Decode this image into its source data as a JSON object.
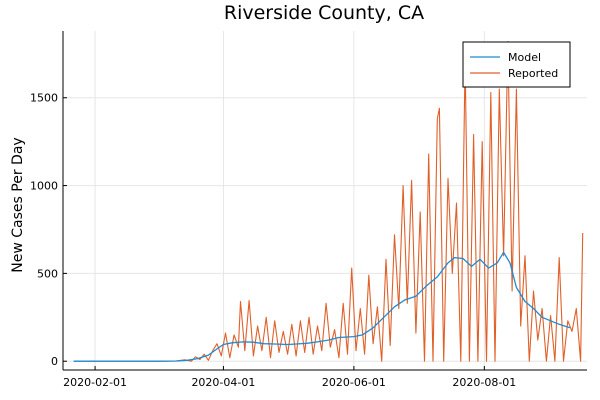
{
  "chart_data": {
    "type": "line",
    "title": "Riverside County, CA",
    "xlabel": "",
    "ylabel": "New Cases Per Day",
    "x_axis_type": "date",
    "xlim": [
      "2020-01-17",
      "2020-09-18"
    ],
    "ylim": [
      -50,
      1880
    ],
    "x_ticks": [
      "2020-02-01",
      "2020-04-01",
      "2020-06-01",
      "2020-08-01"
    ],
    "y_ticks": [
      0,
      500,
      1000,
      1500
    ],
    "grid": true,
    "legend_position": "top-right",
    "colors": {
      "Model": "#1f8bd1",
      "Reported": "#e0602a"
    },
    "series": [
      {
        "name": "Model",
        "points": [
          [
            "2020-01-22",
            0
          ],
          [
            "2020-02-15",
            0
          ],
          [
            "2020-03-01",
            0
          ],
          [
            "2020-03-10",
            1
          ],
          [
            "2020-03-15",
            5
          ],
          [
            "2020-03-20",
            15
          ],
          [
            "2020-03-25",
            35
          ],
          [
            "2020-03-29",
            70
          ],
          [
            "2020-04-01",
            95
          ],
          [
            "2020-04-05",
            105
          ],
          [
            "2020-04-10",
            110
          ],
          [
            "2020-04-15",
            108
          ],
          [
            "2020-04-20",
            100
          ],
          [
            "2020-04-25",
            98
          ],
          [
            "2020-05-01",
            95
          ],
          [
            "2020-05-05",
            98
          ],
          [
            "2020-05-10",
            102
          ],
          [
            "2020-05-15",
            110
          ],
          [
            "2020-05-20",
            120
          ],
          [
            "2020-05-25",
            135
          ],
          [
            "2020-06-01",
            140
          ],
          [
            "2020-06-05",
            150
          ],
          [
            "2020-06-10",
            190
          ],
          [
            "2020-06-15",
            250
          ],
          [
            "2020-06-20",
            310
          ],
          [
            "2020-06-25",
            350
          ],
          [
            "2020-06-30",
            370
          ],
          [
            "2020-07-05",
            430
          ],
          [
            "2020-07-10",
            480
          ],
          [
            "2020-07-15",
            560
          ],
          [
            "2020-07-18",
            590
          ],
          [
            "2020-07-22",
            585
          ],
          [
            "2020-07-26",
            540
          ],
          [
            "2020-07-30",
            580
          ],
          [
            "2020-08-03",
            530
          ],
          [
            "2020-08-07",
            560
          ],
          [
            "2020-08-10",
            620
          ],
          [
            "2020-08-13",
            560
          ],
          [
            "2020-08-16",
            420
          ],
          [
            "2020-08-20",
            340
          ],
          [
            "2020-08-24",
            300
          ],
          [
            "2020-08-28",
            250
          ],
          [
            "2020-09-01",
            230
          ],
          [
            "2020-09-05",
            210
          ],
          [
            "2020-09-10",
            190
          ]
        ]
      },
      {
        "name": "Reported",
        "points": [
          [
            "2020-01-22",
            0
          ],
          [
            "2020-02-20",
            0
          ],
          [
            "2020-03-05",
            0
          ],
          [
            "2020-03-10",
            2
          ],
          [
            "2020-03-14",
            8
          ],
          [
            "2020-03-17",
            0
          ],
          [
            "2020-03-19",
            25
          ],
          [
            "2020-03-21",
            10
          ],
          [
            "2020-03-23",
            40
          ],
          [
            "2020-03-25",
            5
          ],
          [
            "2020-03-27",
            60
          ],
          [
            "2020-03-29",
            100
          ],
          [
            "2020-03-31",
            30
          ],
          [
            "2020-04-02",
            160
          ],
          [
            "2020-04-04",
            20
          ],
          [
            "2020-04-06",
            150
          ],
          [
            "2020-04-08",
            80
          ],
          [
            "2020-04-09",
            340
          ],
          [
            "2020-04-11",
            60
          ],
          [
            "2020-04-13",
            345
          ],
          [
            "2020-04-15",
            30
          ],
          [
            "2020-04-17",
            200
          ],
          [
            "2020-04-19",
            60
          ],
          [
            "2020-04-21",
            250
          ],
          [
            "2020-04-23",
            20
          ],
          [
            "2020-04-25",
            230
          ],
          [
            "2020-04-27",
            50
          ],
          [
            "2020-04-29",
            170
          ],
          [
            "2020-05-01",
            40
          ],
          [
            "2020-05-03",
            210
          ],
          [
            "2020-05-05",
            30
          ],
          [
            "2020-05-07",
            230
          ],
          [
            "2020-05-09",
            50
          ],
          [
            "2020-05-11",
            250
          ],
          [
            "2020-05-13",
            40
          ],
          [
            "2020-05-15",
            200
          ],
          [
            "2020-05-17",
            60
          ],
          [
            "2020-05-19",
            330
          ],
          [
            "2020-05-21",
            80
          ],
          [
            "2020-05-23",
            180
          ],
          [
            "2020-05-25",
            20
          ],
          [
            "2020-05-27",
            330
          ],
          [
            "2020-05-29",
            40
          ],
          [
            "2020-05-31",
            530
          ],
          [
            "2020-06-02",
            60
          ],
          [
            "2020-06-04",
            300
          ],
          [
            "2020-06-06",
            40
          ],
          [
            "2020-06-08",
            490
          ],
          [
            "2020-06-10",
            100
          ],
          [
            "2020-06-12",
            310
          ],
          [
            "2020-06-14",
            0
          ],
          [
            "2020-06-16",
            580
          ],
          [
            "2020-06-18",
            90
          ],
          [
            "2020-06-20",
            720
          ],
          [
            "2020-06-22",
            300
          ],
          [
            "2020-06-24",
            1000
          ],
          [
            "2020-06-26",
            330
          ],
          [
            "2020-06-28",
            1030
          ],
          [
            "2020-06-30",
            160
          ],
          [
            "2020-07-02",
            850
          ],
          [
            "2020-07-04",
            0
          ],
          [
            "2020-07-06",
            1180
          ],
          [
            "2020-07-08",
            0
          ],
          [
            "2020-07-10",
            1380
          ],
          [
            "2020-07-11",
            1440
          ],
          [
            "2020-07-13",
            0
          ],
          [
            "2020-07-15",
            1040
          ],
          [
            "2020-07-17",
            500
          ],
          [
            "2020-07-19",
            900
          ],
          [
            "2020-07-21",
            0
          ],
          [
            "2020-07-23",
            1720
          ],
          [
            "2020-07-25",
            0
          ],
          [
            "2020-07-27",
            1290
          ],
          [
            "2020-07-29",
            0
          ],
          [
            "2020-07-31",
            1250
          ],
          [
            "2020-08-02",
            0
          ],
          [
            "2020-08-04",
            1530
          ],
          [
            "2020-08-06",
            0
          ],
          [
            "2020-08-08",
            1550
          ],
          [
            "2020-08-10",
            600
          ],
          [
            "2020-08-12",
            1820
          ],
          [
            "2020-08-14",
            400
          ],
          [
            "2020-08-16",
            1550
          ],
          [
            "2020-08-18",
            200
          ],
          [
            "2020-08-20",
            600
          ],
          [
            "2020-08-22",
            0
          ],
          [
            "2020-08-24",
            400
          ],
          [
            "2020-08-26",
            120
          ],
          [
            "2020-08-28",
            300
          ],
          [
            "2020-08-30",
            0
          ],
          [
            "2020-09-01",
            260
          ],
          [
            "2020-09-03",
            0
          ],
          [
            "2020-09-05",
            590
          ],
          [
            "2020-09-07",
            0
          ],
          [
            "2020-09-09",
            230
          ],
          [
            "2020-09-11",
            170
          ],
          [
            "2020-09-13",
            300
          ],
          [
            "2020-09-15",
            0
          ],
          [
            "2020-09-16",
            730
          ]
        ]
      }
    ]
  }
}
